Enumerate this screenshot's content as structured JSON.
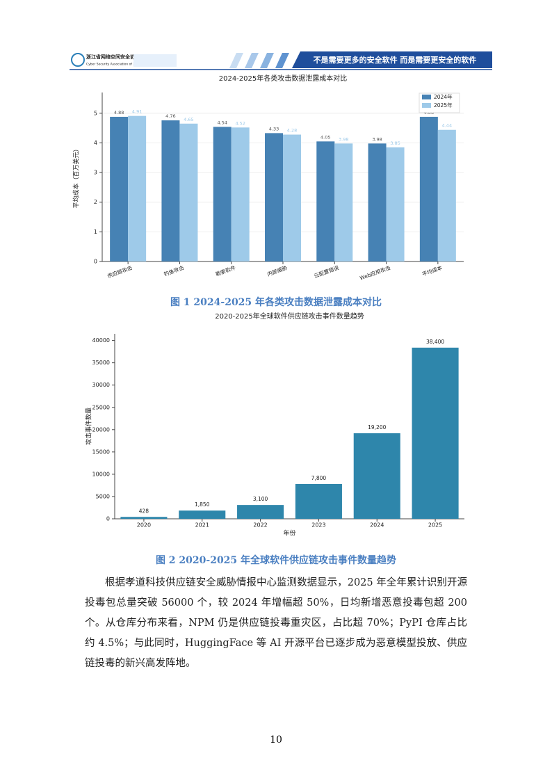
{
  "header": {
    "org_name": "浙江省网络空间安全协会",
    "org_name_en": "Cyber Security Association of Zhejiang",
    "slogan": "不是需要更多的安全软件 而是需要更安全的软件"
  },
  "chart_data": [
    {
      "type": "bar",
      "title": "2024-2025年各类攻击数据泄露成本对比",
      "y_label": "平均成本（百万美元）",
      "categories": [
        "供应链攻击",
        "钓鱼攻击",
        "勒索软件",
        "内部威胁",
        "云配置错误",
        "Web应用攻击",
        "平均成本"
      ],
      "series": [
        {
          "name": "2024年",
          "color": "#4682b4",
          "values": [
            4.88,
            4.76,
            4.54,
            4.33,
            4.05,
            3.98,
            4.88
          ]
        },
        {
          "name": "2025年",
          "color": "#9ecae9",
          "values": [
            4.91,
            4.65,
            4.52,
            4.28,
            3.98,
            3.85,
            4.44
          ]
        }
      ],
      "ylim": [
        0,
        5.7
      ],
      "yticks": [
        0,
        1,
        2,
        3,
        4,
        5
      ],
      "grid": true,
      "legend": "upper right"
    },
    {
      "type": "bar",
      "title": "2020-2025年全球软件供应链攻击事件数量趋势",
      "x_label": "年份",
      "y_label": "攻击事件数量",
      "categories": [
        "2020",
        "2021",
        "2022",
        "2023",
        "2024",
        "2025"
      ],
      "values": [
        428,
        1850,
        3100,
        7800,
        19200,
        38400
      ],
      "value_labels": [
        "428",
        "1,850",
        "3,100",
        "7,800",
        "19,200",
        "38,400"
      ],
      "color": "#2e86ab",
      "ylim": [
        0,
        41500
      ],
      "yticks": [
        0,
        5000,
        10000,
        15000,
        20000,
        25000,
        30000,
        35000,
        40000
      ],
      "grid": false
    }
  ],
  "captions": [
    "图 1 2024-2025 年各类攻击数据泄露成本对比",
    "图 2 2020-2025 年全球软件供应链攻击事件数量趋势"
  ],
  "paragraph": "根据孝道科技供应链安全威胁情报中心监测数据显示，2025 年全年累计识别开源投毒包总量突破 56000 个，较 2024 年增幅超 50%，日均新增恶意投毒包超 200 个。从仓库分布来看，NPM 仍是供应链投毒重灾区，占比超 70%；PyPI 仓库占比约 4.5%；与此同时，HuggingFace 等 AI 开源平台已逐步成为恶意模型投放、供应链投毒的新兴高发阵地。",
  "page_number": "10"
}
